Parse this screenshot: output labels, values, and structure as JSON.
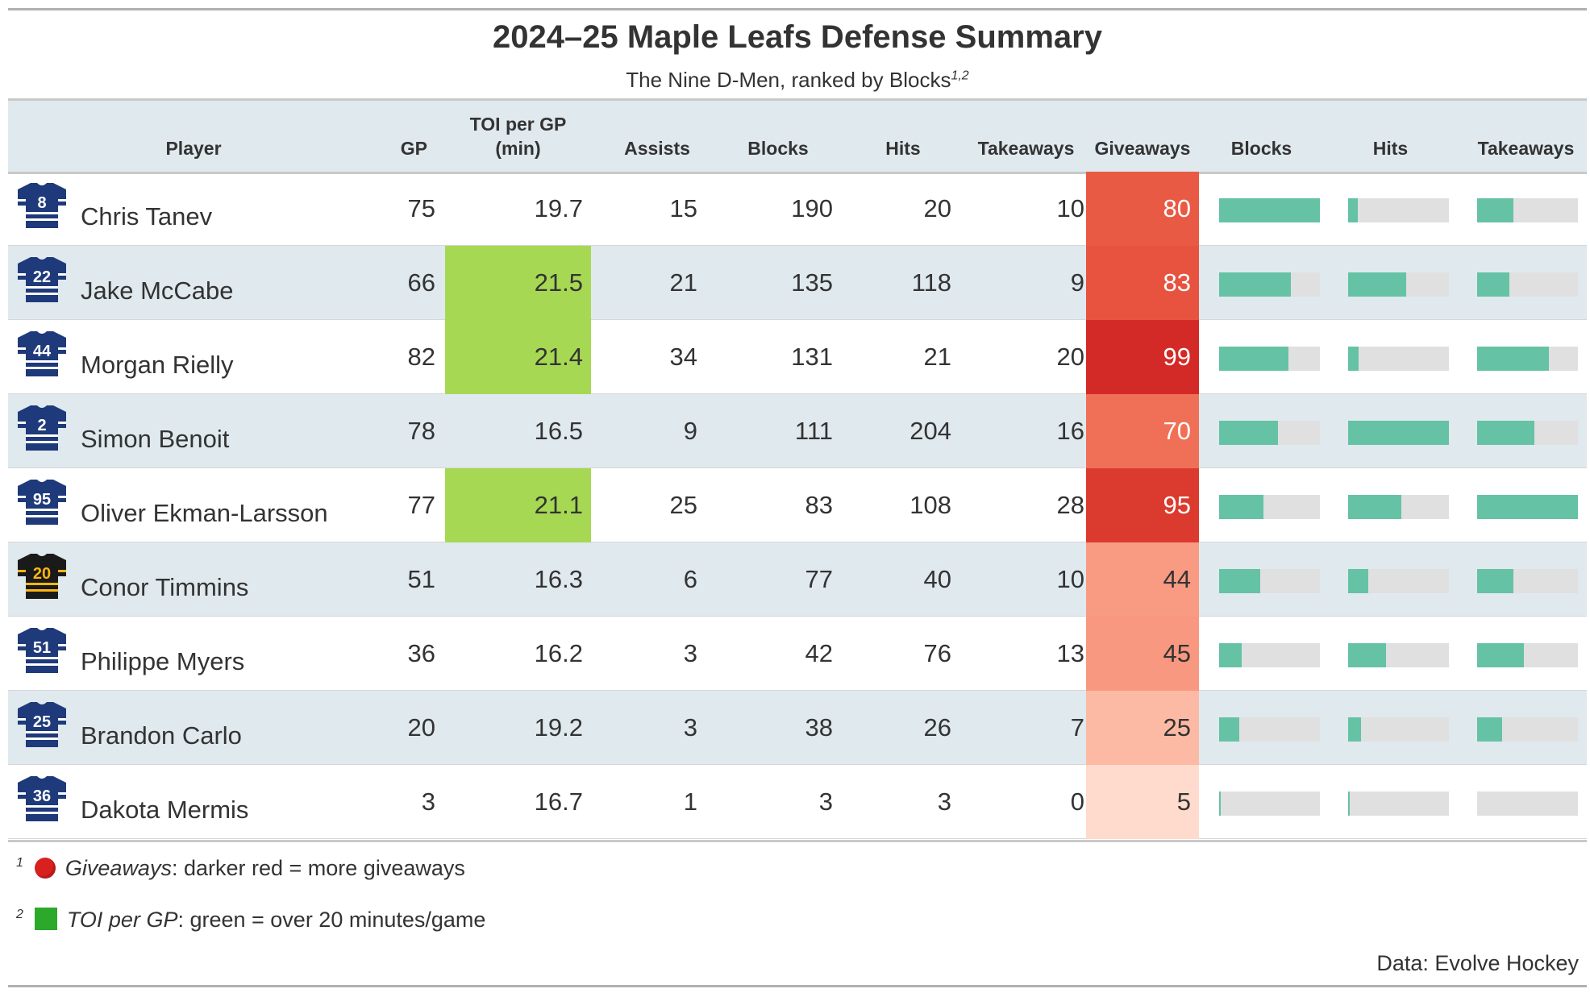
{
  "title": "2024–25 Maple Leafs Defense Summary",
  "subtitle": "The Nine D-Men, ranked by Blocks",
  "subtitle_footnote_marks": "1,2",
  "columns": {
    "player": "Player",
    "gp": "GP",
    "toi_line1": "TOI per GP",
    "toi_line2": "(min)",
    "assists": "Assists",
    "blocks": "Blocks",
    "hits": "Hits",
    "takeaways": "Takeaways",
    "giveaways": "Giveaways",
    "bar_blocks": "Blocks",
    "bar_hits": "Hits",
    "bar_takeaways": "Takeaways"
  },
  "colors": {
    "header_bg": "#dfe9ee",
    "row_alt_bg": "#dfe9ee",
    "toi_highlight": "#a6d854",
    "bar_fill": "#66c2a5",
    "bar_track": "#e0e0e0",
    "jersey_leafs": "#1f3a7a",
    "jersey_bruins": "#1a1a1a",
    "jersey_bruins_accent": "#fcb514"
  },
  "toi_highlight_threshold": 20,
  "chart_data": {
    "type": "table",
    "title": "2024–25 Maple Leafs Defense Summary",
    "subtitle": "The Nine D-Men, ranked by Blocks",
    "rows": [
      {
        "player": "Chris Tanev",
        "number": "8",
        "team": "leafs",
        "gp": "75",
        "toi": "19.7",
        "assists": "15",
        "blocks": "190",
        "hits": "20",
        "takeaways": "10",
        "giveaways": "80",
        "give_color": "#e95a44"
      },
      {
        "player": "Jake McCabe",
        "number": "22",
        "team": "leafs",
        "gp": "66",
        "toi": "21.5",
        "assists": "21",
        "blocks": "135",
        "hits": "118",
        "takeaways": "9",
        "giveaways": "83",
        "give_color": "#e7533f"
      },
      {
        "player": "Morgan Rielly",
        "number": "44",
        "team": "leafs",
        "gp": "82",
        "toi": "21.4",
        "assists": "34",
        "blocks": "131",
        "hits": "21",
        "takeaways": "20",
        "giveaways": "99",
        "give_color": "#d42a27"
      },
      {
        "player": "Simon Benoit",
        "number": "2",
        "team": "leafs",
        "gp": "78",
        "toi": "16.5",
        "assists": "9",
        "blocks": "111",
        "hits": "204",
        "takeaways": "16",
        "giveaways": "70",
        "give_color": "#f07057"
      },
      {
        "player": "Oliver Ekman-Larsson",
        "number": "95",
        "team": "leafs",
        "gp": "77",
        "toi": "21.1",
        "assists": "25",
        "blocks": "83",
        "hits": "108",
        "takeaways": "28",
        "giveaways": "95",
        "give_color": "#db3a2e"
      },
      {
        "player": "Conor Timmins",
        "number": "20",
        "team": "bruins",
        "gp": "51",
        "toi": "16.3",
        "assists": "6",
        "blocks": "77",
        "hits": "40",
        "takeaways": "10",
        "giveaways": "44",
        "give_color": "#f99a83"
      },
      {
        "player": "Philippe Myers",
        "number": "51",
        "team": "leafs",
        "gp": "36",
        "toi": "16.2",
        "assists": "3",
        "blocks": "42",
        "hits": "76",
        "takeaways": "13",
        "giveaways": "45",
        "give_color": "#f99881"
      },
      {
        "player": "Brandon Carlo",
        "number": "25",
        "team": "leafs",
        "gp": "20",
        "toi": "19.2",
        "assists": "3",
        "blocks": "38",
        "hits": "26",
        "takeaways": "7",
        "giveaways": "25",
        "give_color": "#fcbaa5"
      },
      {
        "player": "Dakota Mermis",
        "number": "36",
        "team": "leafs",
        "gp": "3",
        "toi": "16.7",
        "assists": "1",
        "blocks": "3",
        "hits": "3",
        "takeaways": "0",
        "giveaways": "5",
        "give_color": "#fedbcd"
      }
    ],
    "bar_max": {
      "blocks": 190,
      "hits": 204,
      "takeaways": 28
    }
  },
  "footnotes": [
    {
      "mark": "1",
      "term": "Giveaways",
      "text": ": darker red = more giveaways",
      "icon": "red-circle-icon"
    },
    {
      "mark": "2",
      "term": "TOI per GP",
      "text": ": green = over 20 minutes/game",
      "icon": "green-square-icon"
    }
  ],
  "source": "Data: Evolve Hockey"
}
